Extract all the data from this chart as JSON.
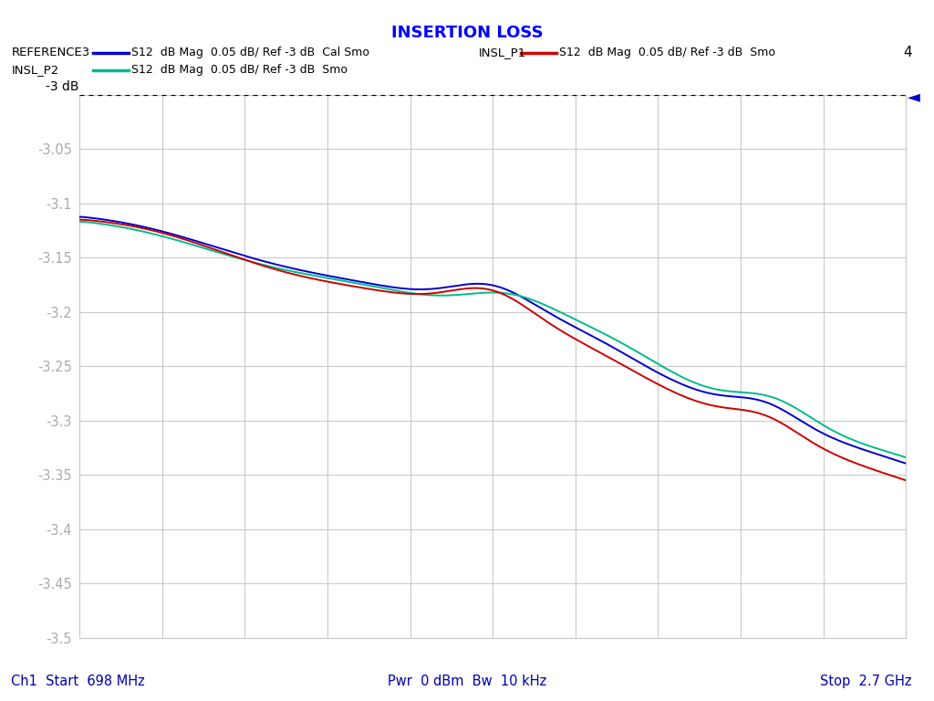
{
  "title": "INSERTION LOSS",
  "title_color": "#0000FF",
  "xstart_ghz": 0.698,
  "xstop_ghz": 2.7,
  "ymin": -3.5,
  "ymax": -3.0,
  "ytick_vals": [
    -3.5,
    -3.45,
    -3.4,
    -3.35,
    -3.3,
    -3.25,
    -3.2,
    -3.15,
    -3.1,
    -3.05
  ],
  "ytick_labels": [
    "-3.5",
    "-3.45",
    "-3.4",
    "-3.35",
    "-3.3",
    "-3.25",
    "-3.2",
    "-3.15",
    "-3.1",
    "-3.05"
  ],
  "ref_line_y": -3.0,
  "ref_label": "-3 dB",
  "bottom_text_left": "Ch1  Start  698 MHz",
  "bottom_text_center": "Pwr  0 dBm  Bw  10 kHz",
  "bottom_text_right": "Stop  2.7 GHz",
  "traces": [
    {
      "name": "REFERENCE3",
      "sublabel": "S12  dB Mag  0.05 dB/ Ref -3 dB  Cal Smo",
      "color": "#0000CD"
    },
    {
      "name": "INSL_P1",
      "sublabel": "S12  dB Mag  0.05 dB/ Ref -3 dB  Smo",
      "color": "#CC0000"
    },
    {
      "name": "INSL_P2",
      "sublabel": "S12  dB Mag  0.05 dB/ Ref -3 dB  Smo",
      "color": "#00BB88"
    }
  ],
  "corner_label": "4",
  "bg_color": "#FFFFFF",
  "grid_color": "#C8C8C8",
  "n_xdivs": 10,
  "tri_blue_color": "#0000CD",
  "tri_green_color": "#00BB88",
  "axis_tick_color": "#AAAAAA",
  "legend_text_color": "#000000",
  "bottom_text_color": "#0000AA"
}
